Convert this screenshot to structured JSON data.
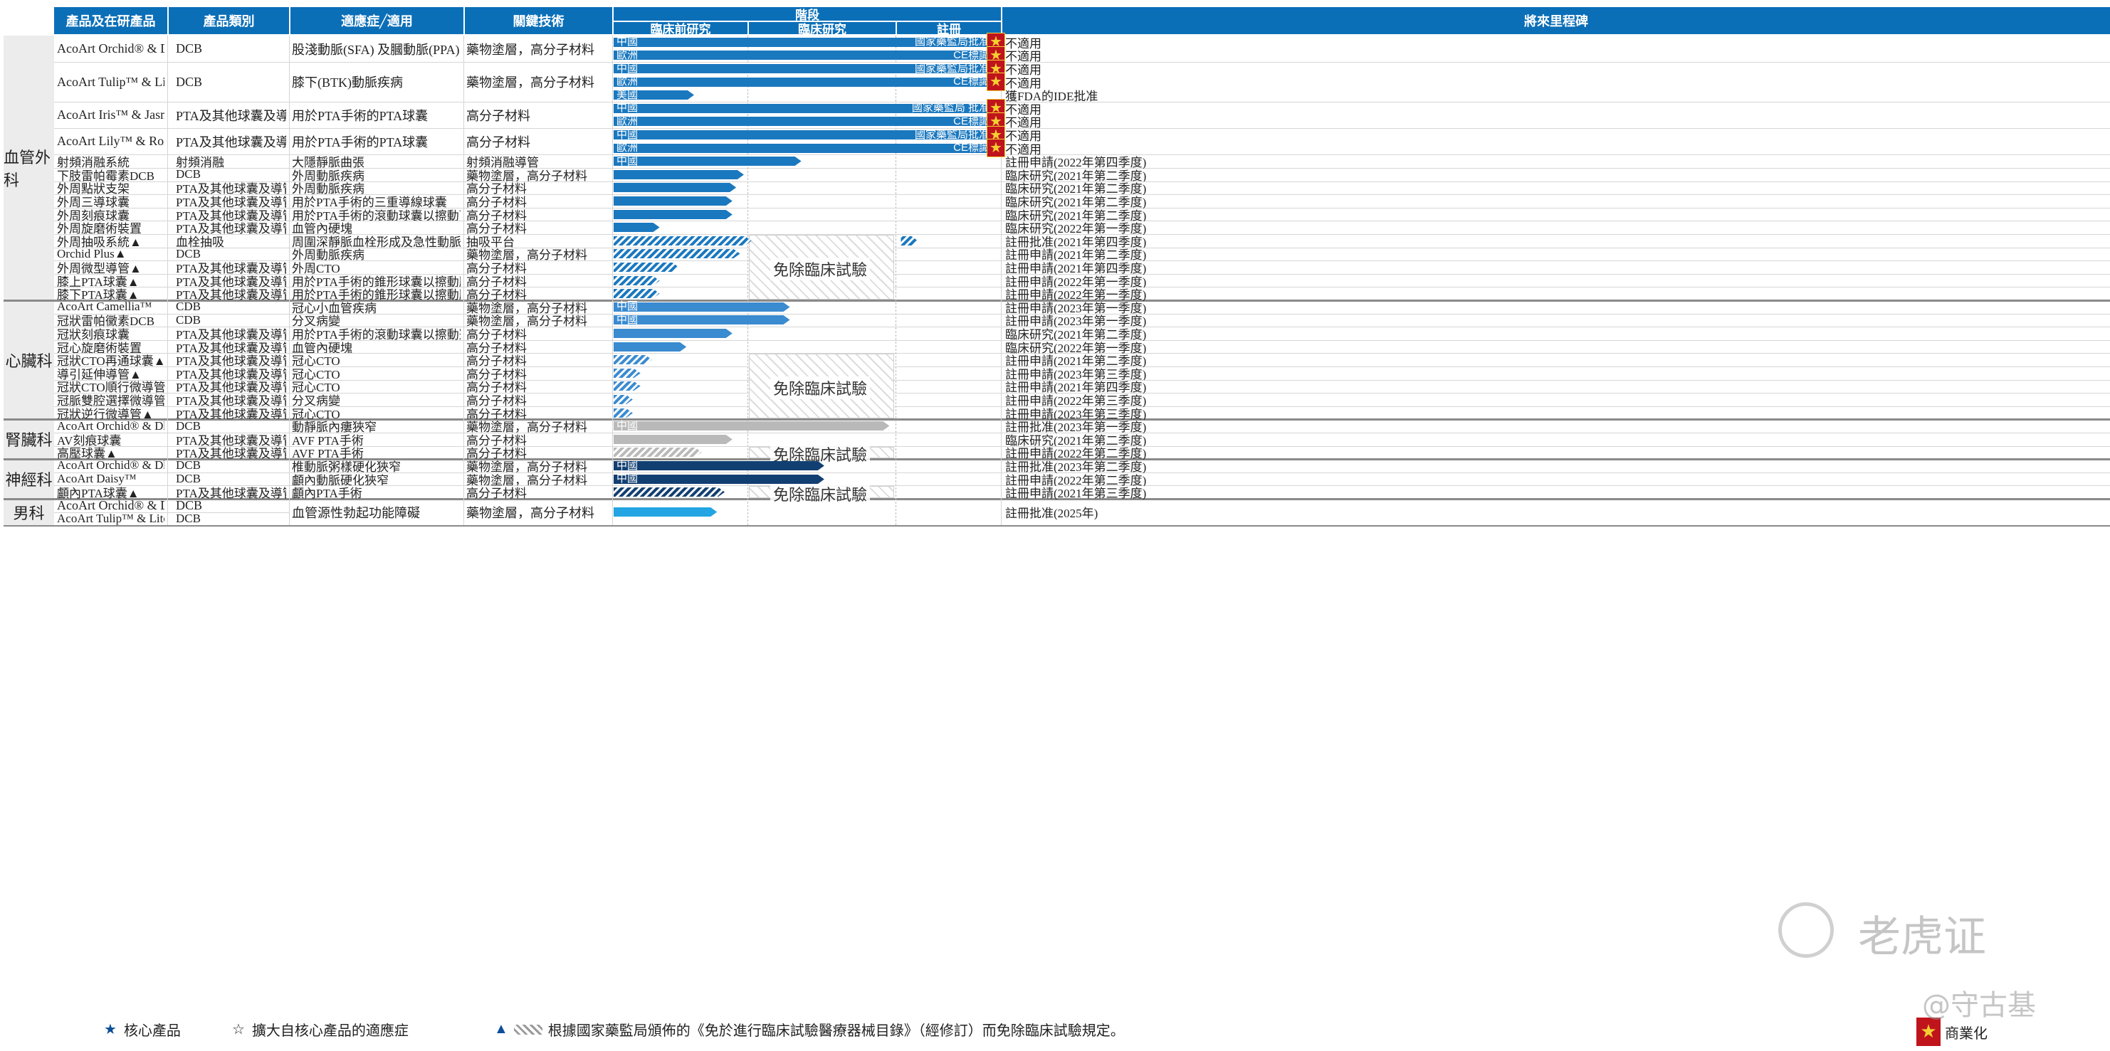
{
  "headers": {
    "product": "產品及在研產品",
    "category": "產品類別",
    "indication": "適應症╱適用",
    "tech": "關鍵技術",
    "stage": "階段",
    "preclinical": "臨床前研究",
    "clinical": "臨床研究",
    "registration": "註冊",
    "milestone": "將來里程碑"
  },
  "sections": [
    {
      "label": "血管外科",
      "rows": [
        0,
        14
      ]
    },
    {
      "label": "心臟科",
      "rows": [
        15,
        23
      ]
    },
    {
      "label": "腎臟科",
      "rows": [
        24,
        26
      ]
    },
    {
      "label": "神經科",
      "rows": [
        27,
        29
      ]
    },
    {
      "label": "男科",
      "rows": [
        30,
        31
      ]
    }
  ],
  "rows": [
    {
      "product": "AcoArt Orchid® & Dhalia™ ★",
      "category": "DCB",
      "indication": "股淺動脈(SFA) 及膕動脈(PPA) 疾病",
      "tech": "藥物塗層，高分子材料",
      "slots": 2
    },
    {
      "product": "AcoArt Tulip™ & Litos™★",
      "category": "DCB",
      "indication": "膝下(BTK)動脈疾病",
      "tech": "藥物塗層，高分子材料",
      "slots": 3
    },
    {
      "product": "AcoArt Iris™ & Jasmin™",
      "category": "PTA及其他球囊及導管",
      "indication": "用於PTA手術的PTA球囊",
      "tech": "高分子材料",
      "slots": 2
    },
    {
      "product": "AcoArt Lily™ & Rosmarin™",
      "category": "PTA及其他球囊及導管",
      "indication": "用於PTA手術的PTA球囊",
      "tech": "高分子材料",
      "slots": 2
    },
    {
      "product": "射頻消融系統",
      "category": "射頻消融",
      "indication": "大隱靜脈曲張",
      "tech": "射頻消融導管",
      "slots": 1
    },
    {
      "product": "下肢雷帕霉素DCB",
      "category": "DCB",
      "indication": "外周動脈疾病",
      "tech": "藥物塗層，高分子材料",
      "slots": 1
    },
    {
      "product": "外周點狀支架",
      "category": "PTA及其他球囊及導管",
      "indication": "外周動脈疾病",
      "tech": "高分子材料",
      "slots": 1
    },
    {
      "product": "外周三導球囊",
      "category": "PTA及其他球囊及導管",
      "indication": "用於PTA手術的三重導線球囊",
      "tech": "高分子材料",
      "slots": 1
    },
    {
      "product": "外周刻痕球囊",
      "category": "PTA及其他球囊及導管",
      "indication": "用於PTA手術的滾動球囊以擦動下四肢動脈",
      "tech": "高分子材料",
      "slots": 1
    },
    {
      "product": "外周旋磨術裝置",
      "category": "PTA及其他球囊及導管",
      "indication": "血管內硬塊",
      "tech": "高分子材料",
      "slots": 1
    },
    {
      "product": "外周抽吸系統▲",
      "category": "血栓抽吸",
      "indication": "周圍深靜脈血栓形成及急性動脈栓塞",
      "tech": "抽吸平台",
      "slots": 1
    },
    {
      "product": "Orchid Plus▲",
      "category": "DCB",
      "indication": "外周動脈疾病",
      "tech": "藥物塗層，高分子材料",
      "slots": 1
    },
    {
      "product": "外周微型導管▲",
      "category": "PTA及其他球囊及導管",
      "indication": "外周CTO",
      "tech": "高分子材料",
      "slots": 1
    },
    {
      "product": "膝上PTA球囊▲",
      "category": "PTA及其他球囊及導管",
      "indication": "用於PTA手術的錐形球囊以擦動膝膕動脈",
      "tech": "高分子材料",
      "slots": 1
    },
    {
      "product": "膝下PTA球囊▲",
      "category": "PTA及其他球囊及導管",
      "indication": "用於PTA手術的錐形球囊以擦動膝下動脈",
      "tech": "高分子材料",
      "slots": 1
    },
    {
      "product": "AcoArt Camellia™",
      "category": "CDB",
      "indication": "冠心小血管疾病",
      "tech": "藥物塗層，高分子材料",
      "slots": 1
    },
    {
      "product": "冠狀雷帕黴素DCB",
      "category": "CDB",
      "indication": "分叉病變",
      "tech": "藥物塗層，高分子材料",
      "slots": 1
    },
    {
      "product": "冠狀刻痕球囊",
      "category": "PTA及其他球囊及導管",
      "indication": "用於PTA手術的滾動球囊以擦動冠狀動脈",
      "tech": "高分子材料",
      "slots": 1
    },
    {
      "product": "冠心旋磨術裝置",
      "category": "PTA及其他球囊及導管",
      "indication": "血管內硬塊",
      "tech": "高分子材料",
      "slots": 1
    },
    {
      "product": "冠狀CTO再通球囊▲",
      "category": "PTA及其他球囊及導管",
      "indication": "冠心CTO",
      "tech": "高分子材料",
      "slots": 1
    },
    {
      "product": "導引延伸導管▲",
      "category": "PTA及其他球囊及導管",
      "indication": "冠心CTO",
      "tech": "高分子材料",
      "slots": 1
    },
    {
      "product": "冠狀CTO順行微導管▲",
      "category": "PTA及其他球囊及導管",
      "indication": "冠心CTO",
      "tech": "高分子材料",
      "slots": 1
    },
    {
      "product": "冠脈雙腔選擇微導管▲",
      "category": "PTA及其他球囊及導管",
      "indication": "分叉病變",
      "tech": "高分子材料",
      "slots": 1
    },
    {
      "product": "冠狀逆行微導管▲",
      "category": "PTA及其他球囊及導管",
      "indication": "冠心CTO",
      "tech": "高分子材料",
      "slots": 1
    },
    {
      "product": "AcoArt Orchid® & Dhalia™ ☆",
      "category": "DCB",
      "indication": "動靜脈內瘻狹窄",
      "tech": "藥物塗層，高分子材料",
      "slots": 1
    },
    {
      "product": "AV刻痕球囊",
      "category": "PTA及其他球囊及導管",
      "indication": "AVF PTA手術",
      "tech": "高分子材料",
      "slots": 1
    },
    {
      "product": "高壓球囊▲",
      "category": "PTA及其他球囊及導管",
      "indication": "AVF PTA手術",
      "tech": "高分子材料",
      "slots": 1
    },
    {
      "product": "AcoArt Orchid® & Dhalia™ ☆",
      "category": "DCB",
      "indication": "椎動脈粥樣硬化狹窄",
      "tech": "藥物塗層，高分子材料",
      "slots": 1
    },
    {
      "product": "AcoArt Daisy™",
      "category": "DCB",
      "indication": "顱內動脈硬化狹窄",
      "tech": "藥物塗層，高分子材料",
      "slots": 1
    },
    {
      "product": "顱內PTA球囊▲",
      "category": "PTA及其他球囊及導管",
      "indication": "顱內PTA手術",
      "tech": "高分子材料",
      "slots": 1
    },
    {
      "product": "AcoArt Orchid® & Dhalia™ ☆",
      "category": "DCB",
      "indication": "血管源性勃起功能障礙",
      "tech": "藥物塗層，高分子材料",
      "slots": 1,
      "merge_next": true
    },
    {
      "product": "AcoArt Tulip™ & Litos™ ☆",
      "category": "DCB",
      "indication": "",
      "tech": "",
      "slots": 1
    }
  ],
  "bar_rows": [
    {
      "row": 0,
      "slot": 0,
      "label": "中國",
      "progress": 1.0,
      "style": "solid",
      "color": "#1a78bf",
      "reg_label": "國家藥監局批准",
      "commercialized": true,
      "milestone": "不適用"
    },
    {
      "row": 0,
      "slot": 1,
      "label": "歐洲",
      "progress": 1.0,
      "style": "solid",
      "color": "#1a78bf",
      "reg_label": "CE標識",
      "commercialized": true,
      "milestone": "不適用"
    },
    {
      "row": 1,
      "slot": 0,
      "label": "中國",
      "progress": 1.0,
      "style": "solid",
      "color": "#1a78bf",
      "reg_label": "國家藥監局批准",
      "commercialized": true,
      "milestone": "不適用"
    },
    {
      "row": 1,
      "slot": 1,
      "label": "歐洲",
      "progress": 1.0,
      "style": "solid",
      "color": "#1a78bf",
      "reg_label": "CE標識",
      "commercialized": true,
      "milestone": "不適用"
    },
    {
      "row": 1,
      "slot": 2,
      "label": "美國",
      "progress": 0.21,
      "style": "solid",
      "color": "#1a78bf",
      "milestone": "獲FDA的IDE批准"
    },
    {
      "row": 2,
      "slot": 0,
      "label": "中國",
      "progress": 1.0,
      "style": "solid",
      "color": "#1a78bf",
      "reg_label": "國家藥監局 批准",
      "commercialized": true,
      "milestone": "不適用"
    },
    {
      "row": 2,
      "slot": 1,
      "label": "歐洲",
      "progress": 1.0,
      "style": "solid",
      "color": "#1a78bf",
      "reg_label": "CE標識",
      "commercialized": true,
      "milestone": "不適用"
    },
    {
      "row": 3,
      "slot": 0,
      "label": "中國",
      "progress": 1.0,
      "style": "solid",
      "color": "#1a78bf",
      "reg_label": "國家藥監局批准",
      "commercialized": true,
      "milestone": "不適用"
    },
    {
      "row": 3,
      "slot": 1,
      "label": "歐洲",
      "progress": 1.0,
      "style": "solid",
      "color": "#1a78bf",
      "reg_label": "CE標識",
      "commercialized": true,
      "milestone": "不適用"
    },
    {
      "row": 4,
      "slot": 0,
      "label": "中國",
      "progress": 0.49,
      "style": "solid",
      "color": "#1a78bf",
      "milestone": "註冊申請(2022年第四季度)"
    },
    {
      "row": 5,
      "slot": 0,
      "label": "",
      "progress": 0.34,
      "style": "solid",
      "color": "#1a78bf",
      "milestone": "臨床研究(2021年第二季度)"
    },
    {
      "row": 6,
      "slot": 0,
      "label": "",
      "progress": 0.32,
      "style": "solid",
      "color": "#1a78bf",
      "milestone": "臨床研究(2021年第二季度)"
    },
    {
      "row": 7,
      "slot": 0,
      "label": "",
      "progress": 0.31,
      "style": "solid",
      "color": "#1a78bf",
      "milestone": "臨床研究(2021年第二季度)"
    },
    {
      "row": 8,
      "slot": 0,
      "label": "",
      "progress": 0.31,
      "style": "solid",
      "color": "#1a78bf",
      "milestone": "臨床研究(2021年第二季度)"
    },
    {
      "row": 9,
      "slot": 0,
      "label": "",
      "progress": 0.12,
      "style": "solid",
      "color": "#1a78bf",
      "milestone": "臨床研究(2022年第一季度)"
    },
    {
      "row": 10,
      "slot": 0,
      "label": "",
      "progress": 0.36,
      "style": "hatch",
      "color": "#1a78bf",
      "extra": 0.75,
      "milestone": "註冊批准(2021年第四季度)"
    },
    {
      "row": 11,
      "slot": 0,
      "label": "",
      "progress": 0.33,
      "style": "hatch",
      "color": "#1a78bf",
      "milestone": "註冊申請(2021年第二季度)"
    },
    {
      "row": 12,
      "slot": 0,
      "label": "",
      "progress": 0.17,
      "style": "hatch",
      "color": "#1a78bf",
      "milestone": "註冊申請(2021年第四季度)"
    },
    {
      "row": 13,
      "slot": 0,
      "label": "",
      "progress": 0.12,
      "style": "hatch",
      "color": "#1a78bf",
      "milestone": "註冊申請(2022年第一季度)"
    },
    {
      "row": 14,
      "slot": 0,
      "label": "",
      "progress": 0.12,
      "style": "hatch",
      "color": "#1a78bf",
      "milestone": "註冊申請(2022年第一季度)"
    },
    {
      "row": 15,
      "slot": 0,
      "label": "中國",
      "progress": 0.46,
      "style": "solid",
      "color": "#3a8bd0",
      "milestone": "註冊申請(2023年第一季度)"
    },
    {
      "row": 16,
      "slot": 0,
      "label": "中國",
      "progress": 0.46,
      "style": "solid",
      "color": "#3a8bd0",
      "milestone": "註冊申請(2023年第一季度)"
    },
    {
      "row": 17,
      "slot": 0,
      "label": "",
      "progress": 0.31,
      "style": "solid",
      "color": "#3a8bd0",
      "milestone": "臨床研究(2021年第二季度)"
    },
    {
      "row": 18,
      "slot": 0,
      "label": "",
      "progress": 0.19,
      "style": "solid",
      "color": "#3a8bd0",
      "milestone": "臨床研究(2022年第一季度)"
    },
    {
      "row": 19,
      "slot": 0,
      "label": "",
      "progress": 0.1,
      "style": "hatch",
      "color": "#3a8bd0",
      "milestone": "註冊申請(2021年第二季度)"
    },
    {
      "row": 20,
      "slot": 0,
      "label": "",
      "progress": 0.07,
      "style": "hatch",
      "color": "#3a8bd0",
      "milestone": "註冊申請(2023年第三季度)"
    },
    {
      "row": 21,
      "slot": 0,
      "label": "",
      "progress": 0.07,
      "style": "hatch",
      "color": "#3a8bd0",
      "milestone": "註冊申請(2021年第四季度)"
    },
    {
      "row": 22,
      "slot": 0,
      "label": "",
      "progress": 0.05,
      "style": "hatch",
      "color": "#3a8bd0",
      "milestone": "註冊申請(2022年第三季度)"
    },
    {
      "row": 23,
      "slot": 0,
      "label": "",
      "progress": 0.05,
      "style": "hatch",
      "color": "#3a8bd0",
      "milestone": "註冊申請(2023年第三季度)"
    },
    {
      "row": 24,
      "slot": 0,
      "label": "中國",
      "progress": 0.72,
      "style": "solid",
      "color": "#b9b9b9",
      "milestone": "註冊批准(2023年第一季度)"
    },
    {
      "row": 25,
      "slot": 0,
      "label": "",
      "progress": 0.31,
      "style": "solid",
      "color": "#b9b9b9",
      "milestone": "臨床研究(2021年第二季度)"
    },
    {
      "row": 26,
      "slot": 0,
      "label": "",
      "progress": 0.23,
      "style": "hatch",
      "color": "#b9b9b9",
      "milestone": "註冊申請(2022年第二季度)"
    },
    {
      "row": 27,
      "slot": 0,
      "label": "中國",
      "progress": 0.55,
      "style": "solid",
      "color": "#123f72",
      "milestone": "註冊批准(2023年第二季度)"
    },
    {
      "row": 28,
      "slot": 0,
      "label": "中國",
      "progress": 0.55,
      "style": "solid",
      "color": "#123f72",
      "milestone": "註冊申請(2022年第二季度)"
    },
    {
      "row": 29,
      "slot": 0,
      "label": "",
      "progress": 0.29,
      "style": "hatch",
      "color": "#123f72",
      "milestone": "註冊申請(2021年第三季度)"
    },
    {
      "row": 30,
      "slot": 0,
      "label": "",
      "progress": 0.27,
      "style": "solid",
      "color": "#22a5e2",
      "merge_next": true,
      "milestone": "註冊批准(2025年)"
    }
  ],
  "exempt_label": "免除臨床試驗",
  "exempt_blocks": [
    {
      "rows": [
        10,
        14
      ]
    },
    {
      "rows": [
        19,
        23
      ]
    },
    {
      "rows": [
        26,
        26
      ]
    },
    {
      "rows": [
        29,
        29
      ]
    }
  ],
  "legend": {
    "core_symbol": "★",
    "core": "核心產品",
    "ext_symbol": "☆",
    "ext": "擴大自核心產品的適應症",
    "exempt_symbol": "▲",
    "exempt_note": "根據國家藥監局頒佈的《免於進行臨床試驗醫療器械目錄》（經修訂）而免除臨床試驗規定。",
    "commercial": "商業化"
  },
  "watermark": {
    "main": "老虎证 ",
    "sub": "@守古基"
  },
  "colors": {
    "header": "#0b6fb8",
    "section_bg": "#ececec"
  },
  "chart_data": {
    "type": "table",
    "stages": [
      "臨床前研究",
      "臨床研究",
      "註冊"
    ]
  }
}
